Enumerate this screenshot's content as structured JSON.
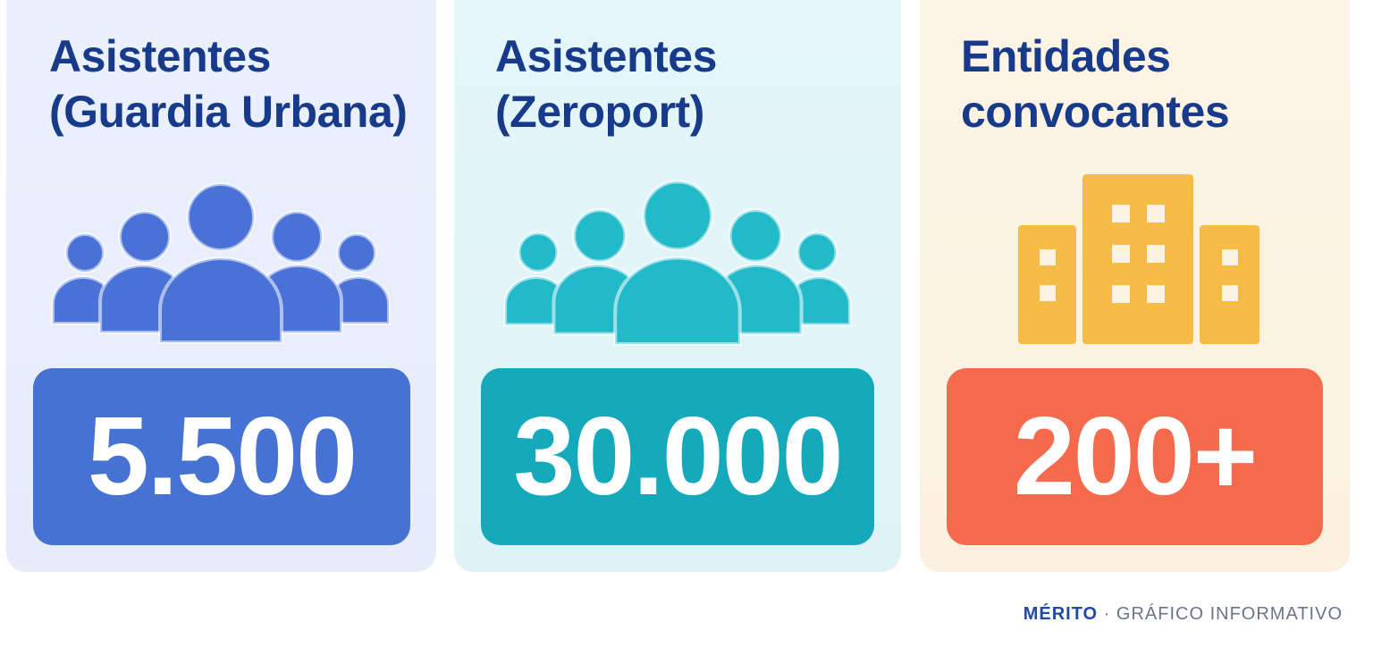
{
  "cards": [
    {
      "title": [
        "Asistentes",
        "(Guardia Urbana)"
      ],
      "value": "5.500"
    },
    {
      "title": [
        "Asistentes",
        "(Zeroport)"
      ],
      "value": "30.000"
    },
    {
      "title": [
        "Entidades",
        "convocantes"
      ],
      "value": "200+"
    }
  ],
  "footer": {
    "brand": "MÉRITO",
    "separator": "·",
    "tagline": "GRÁFICO INFORMATIVO"
  }
}
